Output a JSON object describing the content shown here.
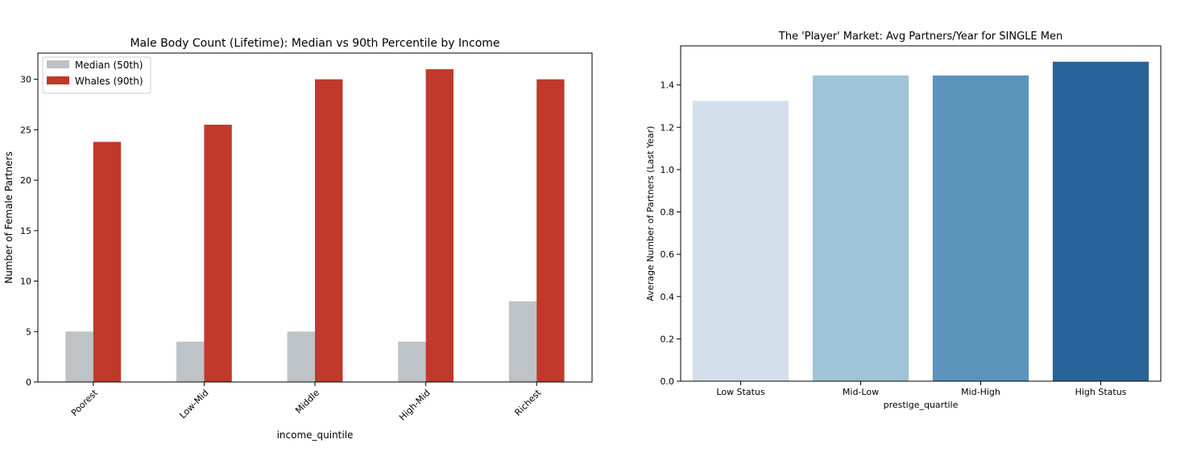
{
  "chart_data": [
    {
      "type": "bar",
      "title": "Male Body Count (Lifetime): Median vs 90th Percentile by Income",
      "xlabel": "income_quintile",
      "ylabel": "Number of Female Partners",
      "categories": [
        "Poorest",
        "Low-Mid",
        "Middle",
        "High-Mid",
        "Richest"
      ],
      "series": [
        {
          "name": "Median (50th)",
          "color": "#bdc3c7",
          "values": [
            5,
            4,
            5,
            4,
            8
          ]
        },
        {
          "name": "Whales (90th)",
          "color": "#c0392b",
          "values": [
            23.8,
            25.5,
            30,
            31,
            30
          ]
        }
      ],
      "ylim": [
        0,
        32.6
      ],
      "yticks": [
        "0",
        "5",
        "10",
        "15",
        "20",
        "25",
        "30"
      ],
      "legend": "top-left",
      "grid": false
    },
    {
      "type": "bar",
      "title": "The 'Player' Market: Avg Partners/Year for SINGLE Men",
      "xlabel": "prestige_quartile",
      "ylabel": "Average Number of Partners (Last Year)",
      "categories": [
        "Low Status",
        "Mid-Low",
        "Mid-High",
        "High Status"
      ],
      "values": [
        1.325,
        1.445,
        1.445,
        1.51
      ],
      "colors": [
        "#d3e0ec",
        "#9fc3d7",
        "#5b93ba",
        "#2a6399"
      ],
      "ylim": [
        0,
        1.585
      ],
      "yticks": [
        "0.0",
        "0.2",
        "0.4",
        "0.6",
        "0.8",
        "1.0",
        "1.2",
        "1.4"
      ],
      "grid": false
    }
  ]
}
